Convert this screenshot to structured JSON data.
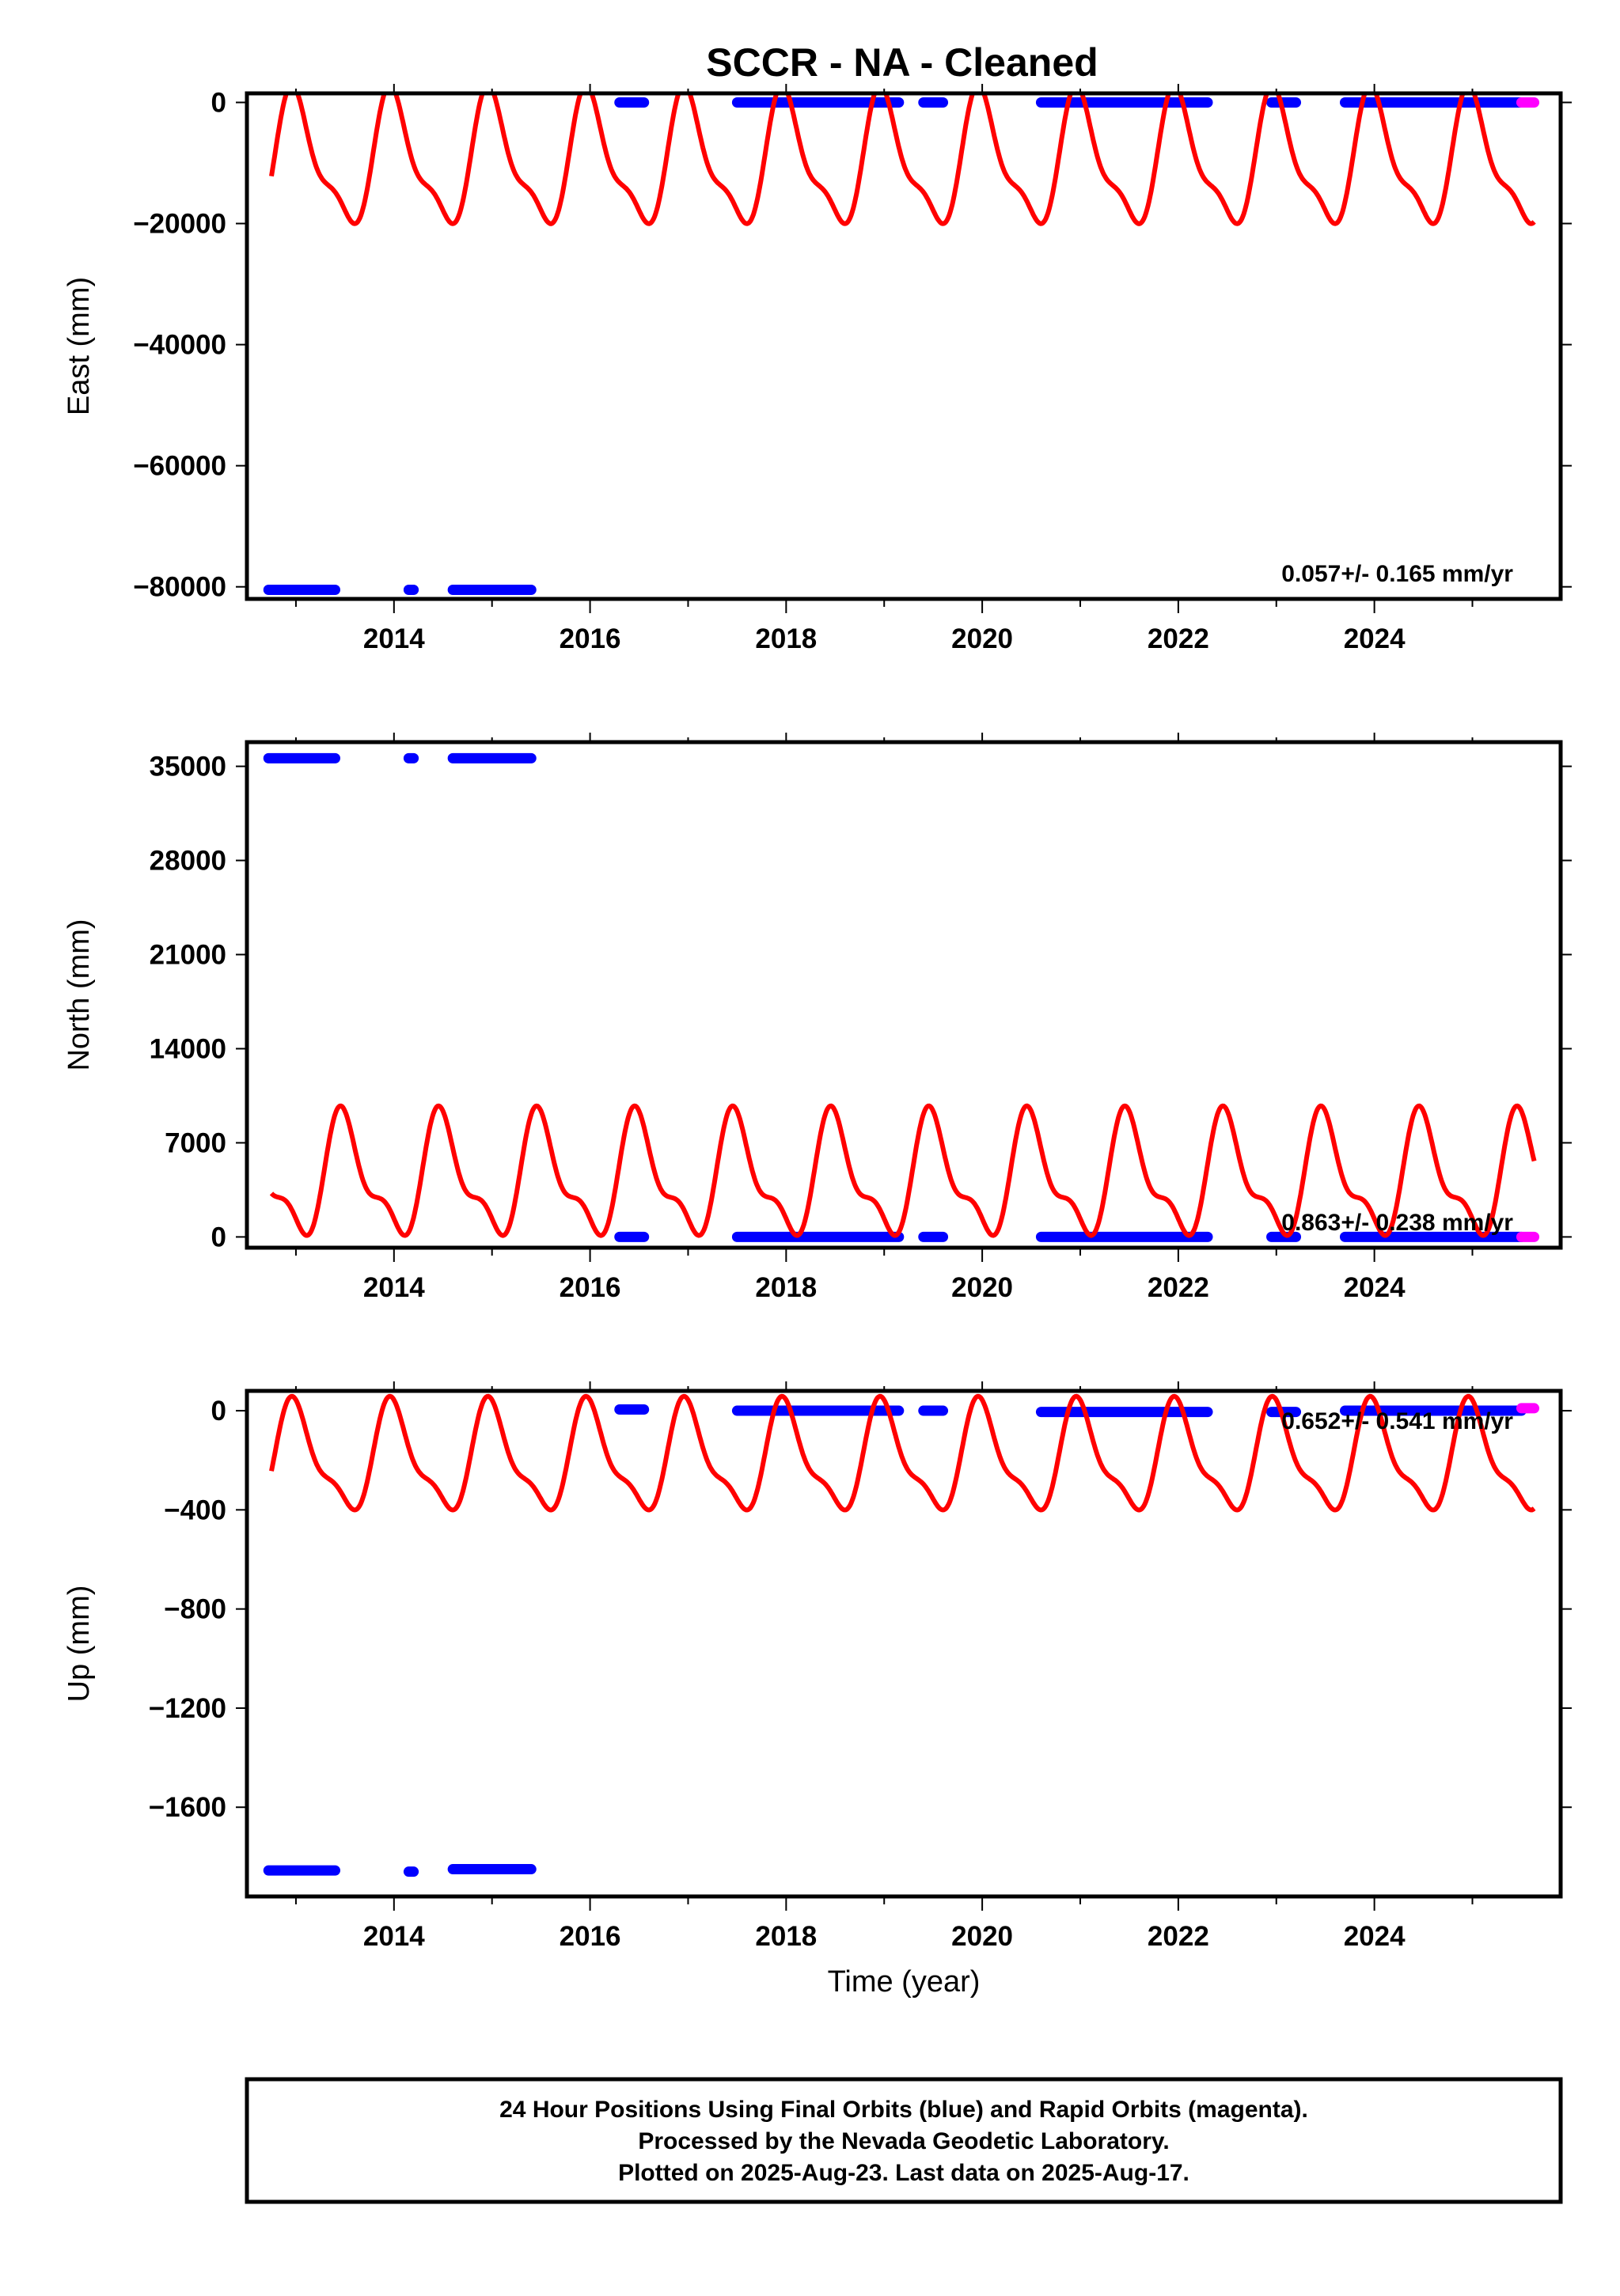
{
  "title": "SCCR  - NA - Cleaned",
  "colors": {
    "final": "#0000ff",
    "rapid": "#ff00ff",
    "fit": "#ff0000",
    "frame": "#000000"
  },
  "chart_data": [
    {
      "type": "scatter",
      "panel": "east",
      "ylabel": "East (mm)",
      "xlabel": "",
      "xlim": [
        2012.5,
        2025.9
      ],
      "ylim": [
        -82000,
        1500
      ],
      "xticks": [
        2014,
        2016,
        2018,
        2020,
        2022,
        2024
      ],
      "yticks": [
        0,
        -20000,
        -40000,
        -60000,
        -80000
      ],
      "ytick_labels": [
        "0",
        "−20000",
        "−40000",
        "−60000",
        "−80000"
      ],
      "rate_text": "0.057+/- 0.165 mm/yr",
      "series": [
        {
          "kind": "final",
          "segments": [
            {
              "x0": 2012.72,
              "x1": 2013.4,
              "y": -80500
            },
            {
              "x0": 2014.15,
              "x1": 2014.2,
              "y": -80500
            },
            {
              "x0": 2014.6,
              "x1": 2015.4,
              "y": -80500
            },
            {
              "x0": 2016.3,
              "x1": 2016.55,
              "y": 0
            },
            {
              "x0": 2017.5,
              "x1": 2019.15,
              "y": 0
            },
            {
              "x0": 2019.4,
              "x1": 2019.6,
              "y": 0
            },
            {
              "x0": 2020.6,
              "x1": 2022.3,
              "y": 0
            },
            {
              "x0": 2022.95,
              "x1": 2023.2,
              "y": 0
            },
            {
              "x0": 2023.7,
              "x1": 2025.5,
              "y": 0
            }
          ]
        },
        {
          "kind": "rapid",
          "segments": [
            {
              "x0": 2025.5,
              "x1": 2025.63,
              "y": 0
            }
          ]
        }
      ],
      "fit": {
        "x_start": 2012.75,
        "x_end": 2025.63,
        "annual_amp": -10000,
        "semi_amp": 3500,
        "offset": -10000,
        "phase_year": 2013.5
      }
    },
    {
      "type": "scatter",
      "panel": "north",
      "ylabel": "North (mm)",
      "xlabel": "",
      "xlim": [
        2012.5,
        2025.9
      ],
      "ylim": [
        -800,
        36800
      ],
      "xticks": [
        2014,
        2016,
        2018,
        2020,
        2022,
        2024
      ],
      "yticks": [
        35000,
        28000,
        21000,
        14000,
        7000,
        0
      ],
      "ytick_labels": [
        "35000",
        "28000",
        "21000",
        "14000",
        "7000",
        "0"
      ],
      "rate_text": "0.863+/- 0.238 mm/yr",
      "series": [
        {
          "kind": "final",
          "segments": [
            {
              "x0": 2012.72,
              "x1": 2013.4,
              "y": 35600
            },
            {
              "x0": 2014.15,
              "x1": 2014.2,
              "y": 35600
            },
            {
              "x0": 2014.6,
              "x1": 2015.4,
              "y": 35600
            },
            {
              "x0": 2016.3,
              "x1": 2016.55,
              "y": 0
            },
            {
              "x0": 2017.5,
              "x1": 2019.15,
              "y": 0
            },
            {
              "x0": 2019.4,
              "x1": 2019.6,
              "y": 0
            },
            {
              "x0": 2020.6,
              "x1": 2022.3,
              "y": 0
            },
            {
              "x0": 2022.95,
              "x1": 2023.2,
              "y": 0
            },
            {
              "x0": 2023.7,
              "x1": 2025.5,
              "y": 0
            }
          ]
        },
        {
          "kind": "rapid",
          "segments": [
            {
              "x0": 2025.5,
              "x1": 2025.63,
              "y": 0
            }
          ]
        }
      ],
      "fit": {
        "x_start": 2012.75,
        "x_end": 2025.63,
        "annual_amp": 4000,
        "semi_amp": 1700,
        "offset": 4300,
        "phase_year": 2013.5
      }
    },
    {
      "type": "scatter",
      "panel": "up",
      "ylabel": "Up (mm)",
      "xlabel": "Time (year)",
      "xlim": [
        2012.5,
        2025.9
      ],
      "ylim": [
        -1960,
        80
      ],
      "xticks": [
        2014,
        2016,
        2018,
        2020,
        2022,
        2024
      ],
      "yticks": [
        0,
        -400,
        -800,
        -1200,
        -1600
      ],
      "ytick_labels": [
        "0",
        "−400",
        "−800",
        "−1200",
        "−1600"
      ],
      "rate_text": "0.652+/- 0.541 mm/yr",
      "series": [
        {
          "kind": "final",
          "segments": [
            {
              "x0": 2012.72,
              "x1": 2013.4,
              "y": -1855
            },
            {
              "x0": 2014.15,
              "x1": 2014.2,
              "y": -1860
            },
            {
              "x0": 2014.6,
              "x1": 2015.4,
              "y": -1850
            },
            {
              "x0": 2016.3,
              "x1": 2016.55,
              "y": 5
            },
            {
              "x0": 2017.5,
              "x1": 2019.15,
              "y": 0
            },
            {
              "x0": 2019.4,
              "x1": 2019.6,
              "y": 0
            },
            {
              "x0": 2020.6,
              "x1": 2022.3,
              "y": -5
            },
            {
              "x0": 2022.95,
              "x1": 2023.2,
              "y": -5
            },
            {
              "x0": 2023.7,
              "x1": 2025.5,
              "y": 0
            }
          ]
        },
        {
          "kind": "rapid",
          "segments": [
            {
              "x0": 2025.5,
              "x1": 2025.63,
              "y": 10
            }
          ]
        }
      ],
      "fit": {
        "x_start": 2012.75,
        "x_end": 2025.63,
        "annual_amp": -200,
        "semi_amp": 70,
        "offset": -200,
        "phase_year": 2013.5
      }
    }
  ],
  "footer": {
    "line1": "24 Hour Positions Using Final Orbits (blue) and Rapid Orbits (magenta).",
    "line2": "Processed by the Nevada Geodetic Laboratory.",
    "line3": "Plotted on 2025-Aug-23. Last data on 2025-Aug-17."
  }
}
